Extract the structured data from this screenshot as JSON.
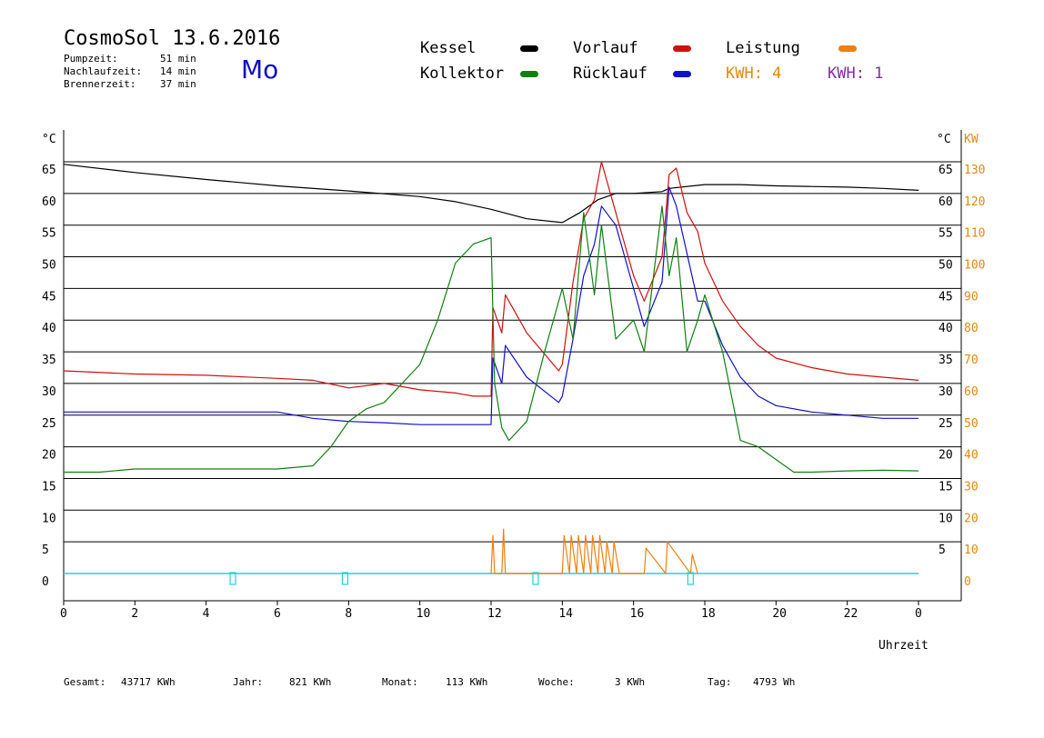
{
  "header": {
    "title": "CosmoSol 13.6.2016",
    "day": "Mo",
    "stats": [
      {
        "label": "Pumpzeit:",
        "value": "51 min"
      },
      {
        "label": "Nachlaufzeit:",
        "value": "14 min"
      },
      {
        "label": "Brennerzeit:",
        "value": "37 min"
      }
    ]
  },
  "legend": {
    "kessel": {
      "label": "Kessel",
      "color": "#000000"
    },
    "vorlauf": {
      "label": "Vorlauf",
      "color": "#d01010"
    },
    "leistung": {
      "label": "Leistung",
      "color": "#f08010"
    },
    "kollektor": {
      "label": "Kollektor",
      "color": "#108010"
    },
    "ruecklauf": {
      "label": "Rücklauf",
      "color": "#1010d0"
    },
    "kwh1": {
      "label": "KWH: 4",
      "color": "#e08a10"
    },
    "kwh2": {
      "label": "KWH: 1",
      "color": "#8030a0"
    }
  },
  "footer": [
    {
      "label": "Gesamt:",
      "value": "43717 KWh"
    },
    {
      "label": "Jahr:",
      "value": "821 KWh"
    },
    {
      "label": "Monat:",
      "value": "113 KWh"
    },
    {
      "label": "Woche:",
      "value": "3 KWh"
    },
    {
      "label": "Tag:",
      "value": "4793 Wh"
    }
  ],
  "chart_data": {
    "type": "line",
    "xlabel": "Uhrzeit",
    "ylabel": "°C",
    "ylabel_right_temp": "°C",
    "ylabel_right_power": "KW",
    "xlim": [
      0,
      24
    ],
    "ylim": [
      0,
      65
    ],
    "x_ticks": [
      "0",
      "2",
      "4",
      "6",
      "8",
      "10",
      "12",
      "14",
      "16",
      "18",
      "20",
      "22",
      "0"
    ],
    "y_ticks_left": [
      "0",
      "5",
      "10",
      "15",
      "20",
      "25",
      "30",
      "35",
      "40",
      "45",
      "50",
      "55",
      "60",
      "65"
    ],
    "y_ticks_right_temp": [
      "5",
      "10",
      "15",
      "20",
      "25",
      "30",
      "35",
      "40",
      "45",
      "50",
      "55",
      "60",
      "65"
    ],
    "y_ticks_right_power": [
      "0",
      "10",
      "20",
      "30",
      "40",
      "50",
      "60",
      "70",
      "80",
      "90",
      "100",
      "110",
      "120",
      "130"
    ],
    "grid": "horizontal",
    "series": [
      {
        "name": "Kessel",
        "color": "#000000",
        "x": [
          0,
          2,
          4,
          6,
          8,
          10,
          11,
          12,
          13,
          14,
          14.5,
          15,
          15.5,
          16,
          16.8,
          17,
          18,
          19,
          20,
          21,
          22,
          23,
          24
        ],
        "y": [
          64.6,
          63.3,
          62.2,
          61.2,
          60.4,
          59.5,
          58.7,
          57.5,
          56,
          55.4,
          57,
          59,
          60,
          60,
          60.3,
          60.8,
          61.4,
          61.4,
          61.2,
          61.1,
          61,
          60.8,
          60.5
        ]
      },
      {
        "name": "Vorlauf",
        "color": "#d01010",
        "x": [
          0,
          2,
          4,
          6,
          7,
          8,
          9,
          10,
          11,
          11.5,
          12,
          12.05,
          12.3,
          12.4,
          13,
          13.9,
          14,
          14.3,
          14.6,
          14.9,
          15.1,
          15.5,
          16,
          16.3,
          16.8,
          17,
          17.2,
          17.5,
          17.8,
          18,
          18.5,
          19,
          19.5,
          20,
          21,
          22,
          23,
          24
        ],
        "y": [
          32,
          31.5,
          31.3,
          30.8,
          30.5,
          29.3,
          30,
          29,
          28.5,
          28,
          28,
          42,
          38,
          44,
          38,
          32,
          33,
          46,
          56,
          59,
          65,
          57,
          47,
          43,
          50,
          63,
          64,
          57,
          54,
          49,
          43,
          39,
          36,
          34,
          32.5,
          31.5,
          31,
          30.5
        ]
      },
      {
        "name": "Rücklauf",
        "color": "#1010d0",
        "x": [
          0,
          2,
          4,
          6,
          7,
          8,
          9,
          10,
          11,
          12,
          12.05,
          12.3,
          12.4,
          13,
          13.9,
          14,
          14.3,
          14.6,
          14.9,
          15.1,
          15.5,
          16,
          16.3,
          16.8,
          17,
          17.2,
          17.8,
          18,
          18.5,
          19,
          19.5,
          20,
          21,
          22,
          23,
          24
        ],
        "y": [
          25.5,
          25.5,
          25.5,
          25.5,
          24.5,
          24,
          23.8,
          23.5,
          23.5,
          23.5,
          34,
          30,
          36,
          31,
          27,
          28,
          37,
          47,
          52,
          58,
          55,
          45,
          39,
          46,
          61,
          58,
          43,
          43,
          36,
          31,
          28,
          26.5,
          25.5,
          25,
          24.5,
          24.5
        ]
      },
      {
        "name": "Kollektor",
        "color": "#108010",
        "x": [
          0,
          1,
          2,
          4,
          6,
          7,
          7.5,
          8,
          8.5,
          9,
          9.5,
          10,
          10.5,
          11,
          11.5,
          12,
          12.1,
          12.3,
          12.5,
          13,
          13.5,
          14,
          14.3,
          14.6,
          14.9,
          15.1,
          15.5,
          16,
          16.3,
          16.8,
          17,
          17.2,
          17.5,
          17.8,
          18,
          18.5,
          19,
          19.5,
          20,
          20.5,
          21,
          22,
          23,
          24
        ],
        "y": [
          16,
          16,
          16.5,
          16.5,
          16.5,
          17,
          20,
          24,
          26,
          27,
          30,
          33,
          40,
          49,
          52,
          53,
          30,
          23,
          21,
          24,
          35,
          45,
          37,
          57,
          44,
          55,
          37,
          40,
          35,
          58,
          47,
          53,
          35,
          40,
          44,
          35,
          21,
          20,
          18,
          16,
          16,
          16.2,
          16.3,
          16.2
        ]
      },
      {
        "name": "Leistung",
        "color": "#f08010",
        "x": [
          12,
          12.05,
          12.1,
          12.3,
          12.35,
          12.4,
          14,
          14.05,
          14.2,
          14.25,
          14.4,
          14.45,
          14.6,
          14.65,
          14.8,
          14.85,
          15,
          15.05,
          15.2,
          15.25,
          15.4,
          15.45,
          15.6,
          16.3,
          16.35,
          16.9,
          16.95,
          17.6,
          17.65,
          17.8
        ],
        "y": [
          0,
          6,
          0,
          0,
          7,
          0,
          0,
          6,
          0,
          6,
          0,
          6,
          0,
          6,
          0,
          6,
          0,
          6,
          0,
          5,
          0,
          5,
          0,
          0,
          4,
          0,
          5,
          0,
          3,
          0
        ]
      }
    ]
  }
}
